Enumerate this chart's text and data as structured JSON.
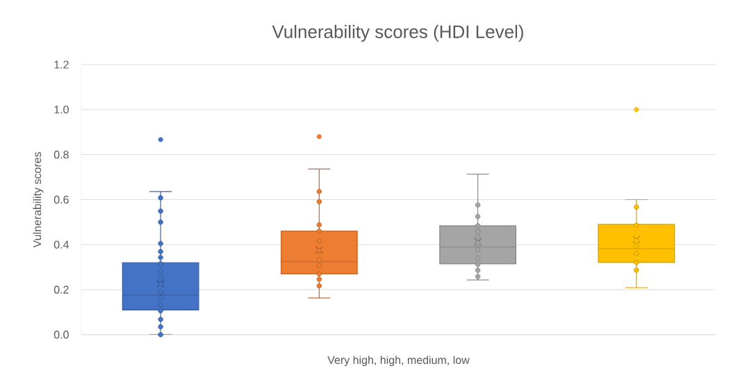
{
  "chart_data": {
    "type": "box",
    "title": "Vulnerability scores (HDI Level)",
    "xlabel": "Very high, high, medium, low",
    "ylabel": "Vulnerability scores",
    "categories": [
      null,
      null,
      null,
      null
    ],
    "ylim": [
      0,
      1.2
    ],
    "yticks": [
      {
        "value": 0,
        "label": "0.0"
      },
      0.2,
      0.4,
      0.6,
      0.8,
      {
        "value": 1,
        "label": "1.0"
      },
      1.2
    ],
    "grid": "y",
    "marker": "circle",
    "series": [
      {
        "colors": [
          "#4472c4",
          "#ed7d31",
          "#a5a5a5",
          "#ffc000"
        ],
        "boxes": [
          {
            "low": 0.0,
            "q1": 0.11,
            "median": 0.176,
            "q3": 0.32,
            "high": 0.636,
            "mean": 0.227,
            "outliers": [
              0.867
            ]
          },
          {
            "low": 0.163,
            "q1": 0.27,
            "median": 0.325,
            "q3": 0.46,
            "high": 0.736,
            "mean": 0.376,
            "outliers": [
              0.88
            ]
          },
          {
            "low": 0.243,
            "q1": 0.315,
            "median": 0.39,
            "q3": 0.484,
            "high": 0.713,
            "mean": 0.412
          },
          {
            "low": 0.209,
            "q1": 0.321,
            "median": 0.382,
            "q3": 0.49,
            "high": 0.6,
            "mean": 0.423,
            "outliers": [
              1.0
            ]
          }
        ]
      },
      {
        "type": "scatter",
        "colors": [
          "#4472c4",
          "#ed7d31",
          "#a5a5a5",
          "#ffc000"
        ],
        "values": [
          0.608,
          0.636,
          0.576,
          0.567
        ]
      },
      {
        "type": "scatter",
        "colors": [
          "#4472c4",
          "#ed7d31",
          "#a5a5a5",
          "#ffc000"
        ],
        "values": [
          0.549,
          0.591,
          0.525,
          0.486
        ]
      },
      {
        "type": "scatter",
        "colors": [
          "#4472c4",
          "#ed7d31",
          "#a5a5a5",
          "#ffc000"
        ],
        "values": [
          0.5,
          0.488,
          0.484,
          0.417
        ]
      },
      {
        "type": "scatter",
        "colors": [
          "#4472c4",
          "#ed7d31",
          "#a5a5a5",
          "#ffc000"
        ],
        "values": [
          0.405,
          0.46,
          0.459,
          0.394
        ]
      },
      {
        "type": "scatter",
        "colors": [
          "#4472c4",
          "#ed7d31",
          "#a5a5a5",
          "#ffc000"
        ],
        "values": [
          0.369,
          0.415,
          0.435,
          0.361
        ]
      },
      {
        "type": "scatter",
        "colors": [
          "#4472c4",
          "#ed7d31",
          "#a5a5a5",
          "#ffc000"
        ],
        "values": [
          0.343,
          0.373,
          0.407,
          0.321
        ]
      },
      {
        "type": "scatter",
        "colors": [
          "#4472c4",
          "#ed7d31",
          "#a5a5a5",
          "#ffc000"
        ],
        "values": [
          0.315,
          0.332,
          0.379,
          0.287
        ]
      },
      {
        "type": "scatter",
        "colors": [
          "#4472c4",
          "#ed7d31",
          "#a5a5a5",
          "#ffc000"
        ],
        "values": [
          0.282,
          0.308,
          0.34,
          null
        ]
      },
      {
        "type": "scatter",
        "colors": [
          "#4472c4",
          "#ed7d31",
          "#a5a5a5",
          "#ffc000"
        ],
        "values": [
          0.253,
          0.27,
          0.312,
          null
        ]
      },
      {
        "type": "scatter",
        "colors": [
          "#4472c4",
          "#ed7d31",
          "#a5a5a5",
          "#ffc000"
        ],
        "values": [
          0.224,
          0.246,
          0.286,
          null
        ]
      },
      {
        "type": "scatter",
        "colors": [
          "#4472c4",
          "#ed7d31",
          "#a5a5a5",
          "#ffc000"
        ],
        "values": [
          0.189,
          0.217,
          0.258,
          null
        ]
      },
      {
        "type": "scatter",
        "colors": [
          "#4472c4",
          "#ed7d31",
          "#a5a5a5",
          "#ffc000"
        ],
        "values": [
          0.164,
          null,
          null,
          null
        ]
      },
      {
        "type": "scatter",
        "colors": [
          "#4472c4",
          "#ed7d31",
          "#a5a5a5",
          "#ffc000"
        ],
        "values": [
          0.132,
          null,
          null,
          null
        ]
      },
      {
        "type": "scatter",
        "colors": [
          "#4472c4",
          "#ed7d31",
          "#a5a5a5",
          "#ffc000"
        ],
        "values": [
          0.106,
          null,
          null,
          null
        ]
      },
      {
        "type": "scatter",
        "colors": [
          "#4472c4",
          "#ed7d31",
          "#a5a5a5",
          "#ffc000"
        ],
        "values": [
          0.068,
          null,
          null,
          null
        ]
      },
      {
        "type": "scatter",
        "colors": [
          "#4472c4",
          "#ed7d31",
          "#a5a5a5",
          "#ffc000"
        ],
        "values": [
          0.035,
          null,
          null,
          null
        ]
      },
      {
        "type": "scatter",
        "colors": [
          "#4472c4",
          "#ed7d31",
          "#a5a5a5",
          "#ffc000"
        ],
        "values": [
          0.0,
          null,
          null,
          null
        ]
      }
    ]
  }
}
